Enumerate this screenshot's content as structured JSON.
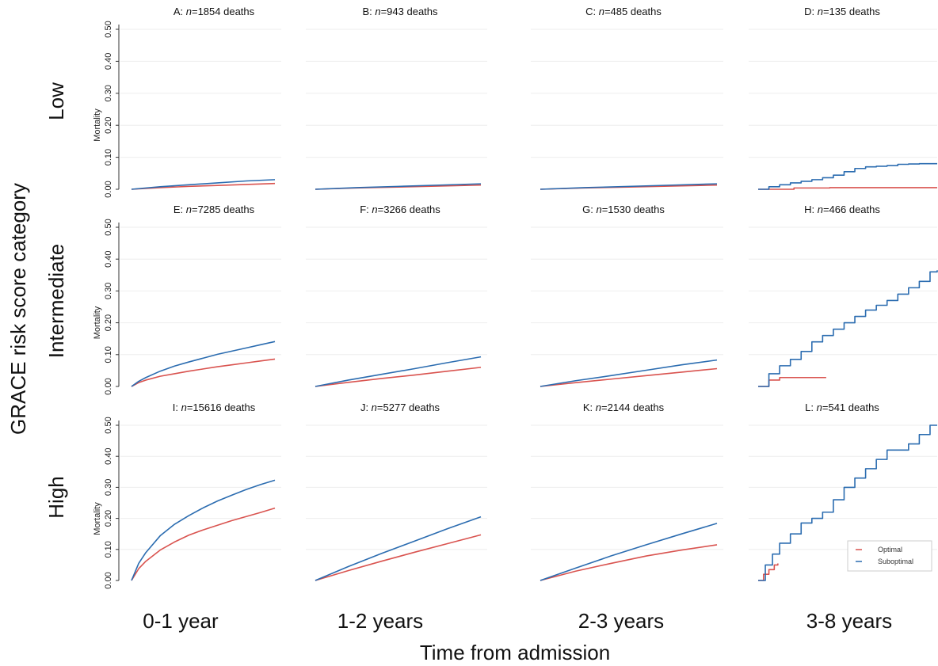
{
  "figure": {
    "ylabel_global": "GRACE risk score category",
    "xlabel_global": "Time from admission",
    "rows": [
      "Low",
      "Intermediate",
      "High"
    ],
    "columns": [
      "0-1 year",
      "1-2 years",
      "2-3 years",
      "3-8 years"
    ],
    "panel_ylabel": "Mortality",
    "legend": {
      "items": [
        "Optimal",
        "Suboptimal"
      ]
    },
    "colors": {
      "optimal": "#d9534f",
      "suboptimal": "#2b6cb0"
    }
  },
  "chart_data": [
    {
      "type": "line",
      "panel": "A",
      "title_prefix": "A:",
      "n": "n",
      "title_suffix": "=1854 deaths",
      "ylim": [
        0,
        0.5
      ],
      "yticks": [
        "0.00",
        "0.10",
        "0.20",
        "0.30",
        "0.40",
        "0.50"
      ],
      "xlim": [
        0,
        1
      ],
      "series": [
        {
          "name": "Optimal",
          "x": [
            0,
            0.2,
            0.4,
            0.6,
            0.8,
            1.0
          ],
          "y": [
            0,
            0.005,
            0.009,
            0.012,
            0.015,
            0.018
          ]
        },
        {
          "name": "Suboptimal",
          "x": [
            0,
            0.2,
            0.4,
            0.6,
            0.8,
            1.0
          ],
          "y": [
            0,
            0.008,
            0.014,
            0.02,
            0.026,
            0.03
          ]
        }
      ]
    },
    {
      "type": "line",
      "panel": "B",
      "title_prefix": "B:",
      "n": "n",
      "title_suffix": "=943 deaths",
      "ylim": [
        0,
        0.5
      ],
      "xlim": [
        1,
        2
      ],
      "series": [
        {
          "name": "Optimal",
          "x": [
            1,
            1.25,
            1.5,
            1.75,
            2.0
          ],
          "y": [
            0,
            0.004,
            0.007,
            0.01,
            0.013
          ]
        },
        {
          "name": "Suboptimal",
          "x": [
            1,
            1.25,
            1.5,
            1.75,
            2.0
          ],
          "y": [
            0,
            0.005,
            0.009,
            0.013,
            0.017
          ]
        }
      ]
    },
    {
      "type": "line",
      "panel": "C",
      "title_prefix": "C:",
      "n": "n",
      "title_suffix": "=485 deaths",
      "ylim": [
        0,
        0.5
      ],
      "xlim": [
        2,
        3
      ],
      "series": [
        {
          "name": "Optimal",
          "x": [
            2,
            2.25,
            2.5,
            2.75,
            3.0
          ],
          "y": [
            0,
            0.004,
            0.007,
            0.01,
            0.013
          ]
        },
        {
          "name": "Suboptimal",
          "x": [
            2,
            2.25,
            2.5,
            2.75,
            3.0
          ],
          "y": [
            0,
            0.005,
            0.009,
            0.013,
            0.017
          ]
        }
      ]
    },
    {
      "type": "line",
      "panel": "D",
      "title_prefix": "D:",
      "n": "n",
      "title_suffix": "=135 deaths",
      "ylim": [
        0,
        0.5
      ],
      "xlim": [
        3,
        8
      ],
      "series": [
        {
          "name": "Optimal",
          "x": [
            3,
            4,
            5,
            6,
            7,
            8
          ],
          "y": [
            0,
            0.004,
            0.005,
            0.005,
            0.005,
            0.005
          ]
        },
        {
          "name": "Suboptimal",
          "x": [
            3,
            3.3,
            3.6,
            3.9,
            4.2,
            4.5,
            4.8,
            5.1,
            5.4,
            5.7,
            6.0,
            6.3,
            6.6,
            6.9,
            7.2,
            7.5,
            7.8,
            8.0
          ],
          "y": [
            0,
            0.008,
            0.014,
            0.02,
            0.025,
            0.03,
            0.036,
            0.044,
            0.055,
            0.065,
            0.07,
            0.072,
            0.074,
            0.078,
            0.079,
            0.08,
            0.08,
            0.08
          ]
        }
      ]
    },
    {
      "type": "line",
      "panel": "E",
      "title_prefix": "E:",
      "n": "n",
      "title_suffix": "=7285 deaths",
      "ylim": [
        0,
        0.5
      ],
      "xlim": [
        0,
        1
      ],
      "series": [
        {
          "name": "Optimal",
          "x": [
            0,
            0.05,
            0.1,
            0.2,
            0.3,
            0.4,
            0.5,
            0.6,
            0.7,
            0.8,
            0.9,
            1.0
          ],
          "y": [
            0,
            0.012,
            0.02,
            0.032,
            0.04,
            0.048,
            0.055,
            0.062,
            0.068,
            0.074,
            0.08,
            0.086
          ]
        },
        {
          "name": "Suboptimal",
          "x": [
            0,
            0.05,
            0.1,
            0.2,
            0.3,
            0.4,
            0.5,
            0.6,
            0.7,
            0.8,
            0.9,
            1.0
          ],
          "y": [
            0,
            0.016,
            0.028,
            0.048,
            0.064,
            0.077,
            0.089,
            0.101,
            0.111,
            0.121,
            0.131,
            0.141
          ]
        }
      ]
    },
    {
      "type": "line",
      "panel": "F",
      "title_prefix": "F:",
      "n": "n",
      "title_suffix": "=3266 deaths",
      "ylim": [
        0,
        0.5
      ],
      "xlim": [
        1,
        2
      ],
      "series": [
        {
          "name": "Optimal",
          "x": [
            1,
            1.2,
            1.4,
            1.6,
            1.8,
            2.0
          ],
          "y": [
            0,
            0.013,
            0.025,
            0.036,
            0.048,
            0.06
          ]
        },
        {
          "name": "Suboptimal",
          "x": [
            1,
            1.2,
            1.4,
            1.6,
            1.8,
            2.0
          ],
          "y": [
            0,
            0.02,
            0.038,
            0.056,
            0.075,
            0.093
          ]
        }
      ]
    },
    {
      "type": "line",
      "panel": "G",
      "title_prefix": "G:",
      "n": "n",
      "title_suffix": "=1530 deaths",
      "ylim": [
        0,
        0.5
      ],
      "xlim": [
        2,
        3
      ],
      "series": [
        {
          "name": "Optimal",
          "x": [
            2,
            2.2,
            2.4,
            2.6,
            2.8,
            3.0
          ],
          "y": [
            0,
            0.012,
            0.023,
            0.034,
            0.045,
            0.056
          ]
        },
        {
          "name": "Suboptimal",
          "x": [
            2,
            2.2,
            2.4,
            2.6,
            2.8,
            3.0
          ],
          "y": [
            0,
            0.018,
            0.034,
            0.051,
            0.068,
            0.083
          ]
        }
      ]
    },
    {
      "type": "line",
      "panel": "H",
      "title_prefix": "H:",
      "n": "n",
      "title_suffix": "=466 deaths",
      "ylim": [
        0,
        0.5
      ],
      "xlim": [
        3,
        8
      ],
      "series": [
        {
          "name": "Optimal",
          "x": [
            3,
            3.3,
            3.6,
            4.0,
            4.5,
            4.9
          ],
          "y": [
            0,
            0.02,
            0.028,
            0.028,
            0.028,
            0.028
          ]
        },
        {
          "name": "Suboptimal",
          "x": [
            3,
            3.3,
            3.6,
            3.9,
            4.2,
            4.5,
            4.8,
            5.1,
            5.4,
            5.7,
            6.0,
            6.3,
            6.6,
            6.9,
            7.2,
            7.5,
            7.8,
            8.0
          ],
          "y": [
            0,
            0.04,
            0.065,
            0.085,
            0.11,
            0.14,
            0.16,
            0.18,
            0.2,
            0.22,
            0.24,
            0.255,
            0.27,
            0.29,
            0.31,
            0.33,
            0.36,
            0.365
          ]
        }
      ]
    },
    {
      "type": "line",
      "panel": "I",
      "title_prefix": "I:",
      "n": "n",
      "title_suffix": "=15616 deaths",
      "ylim": [
        0,
        0.5
      ],
      "xlim": [
        0,
        1
      ],
      "series": [
        {
          "name": "Optimal",
          "x": [
            0,
            0.05,
            0.1,
            0.2,
            0.3,
            0.4,
            0.5,
            0.6,
            0.7,
            0.8,
            0.9,
            1.0
          ],
          "y": [
            0,
            0.038,
            0.062,
            0.098,
            0.124,
            0.146,
            0.163,
            0.178,
            0.193,
            0.206,
            0.219,
            0.233
          ]
        },
        {
          "name": "Suboptimal",
          "x": [
            0,
            0.05,
            0.1,
            0.2,
            0.3,
            0.4,
            0.5,
            0.6,
            0.7,
            0.8,
            0.9,
            1.0
          ],
          "y": [
            0,
            0.055,
            0.09,
            0.144,
            0.181,
            0.209,
            0.234,
            0.256,
            0.275,
            0.293,
            0.309,
            0.323
          ]
        }
      ]
    },
    {
      "type": "line",
      "panel": "J",
      "title_prefix": "J:",
      "n": "n",
      "title_suffix": "=5277 deaths",
      "ylim": [
        0,
        0.5
      ],
      "xlim": [
        1,
        2
      ],
      "series": [
        {
          "name": "Optimal",
          "x": [
            1,
            1.2,
            1.4,
            1.6,
            1.8,
            2.0
          ],
          "y": [
            0,
            0.032,
            0.062,
            0.091,
            0.119,
            0.147
          ]
        },
        {
          "name": "Suboptimal",
          "x": [
            1,
            1.2,
            1.4,
            1.6,
            1.8,
            2.0
          ],
          "y": [
            0,
            0.045,
            0.087,
            0.127,
            0.167,
            0.205
          ]
        }
      ]
    },
    {
      "type": "line",
      "panel": "K",
      "title_prefix": "K:",
      "n": "n",
      "title_suffix": "=2144 deaths",
      "ylim": [
        0,
        0.5
      ],
      "xlim": [
        2,
        3
      ],
      "series": [
        {
          "name": "Optimal",
          "x": [
            2,
            2.2,
            2.4,
            2.6,
            2.8,
            3.0
          ],
          "y": [
            0,
            0.03,
            0.055,
            0.079,
            0.098,
            0.115
          ]
        },
        {
          "name": "Suboptimal",
          "x": [
            2,
            2.2,
            2.4,
            2.6,
            2.8,
            3.0
          ],
          "y": [
            0,
            0.04,
            0.079,
            0.115,
            0.15,
            0.184
          ]
        }
      ]
    },
    {
      "type": "line",
      "panel": "L",
      "title_prefix": "L:",
      "n": "n",
      "title_suffix": "=541 deaths",
      "ylim": [
        0,
        0.5
      ],
      "xlim": [
        3,
        8
      ],
      "series": [
        {
          "name": "Optimal",
          "x": [
            3,
            3.15,
            3.3,
            3.45,
            3.55
          ],
          "y": [
            0,
            0.02,
            0.035,
            0.05,
            0.055
          ]
        },
        {
          "name": "Suboptimal",
          "x": [
            3,
            3.2,
            3.4,
            3.6,
            3.9,
            4.2,
            4.5,
            4.8,
            5.1,
            5.4,
            5.7,
            6.0,
            6.3,
            6.6,
            6.9,
            7.2,
            7.5,
            7.8,
            8.0
          ],
          "y": [
            0,
            0.05,
            0.085,
            0.12,
            0.15,
            0.185,
            0.2,
            0.22,
            0.26,
            0.3,
            0.33,
            0.36,
            0.39,
            0.42,
            0.42,
            0.44,
            0.47,
            0.5,
            0.5
          ]
        }
      ]
    }
  ]
}
